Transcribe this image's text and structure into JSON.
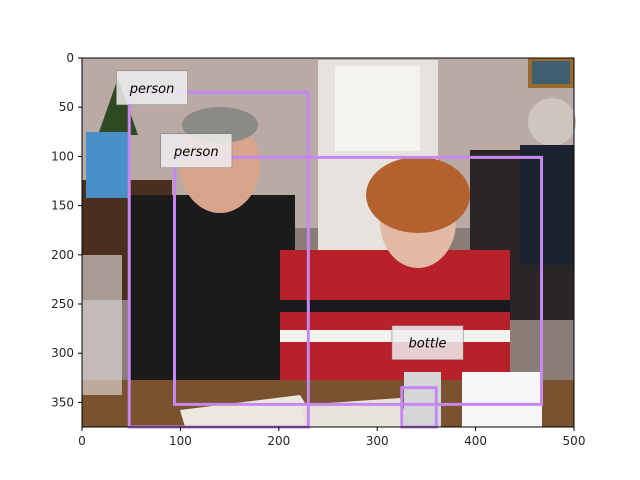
{
  "image": {
    "description_free": true,
    "width_units": 500,
    "height_units": 375,
    "x_ticks": [
      0,
      100,
      200,
      300,
      400,
      500
    ],
    "y_ticks": [
      0,
      50,
      100,
      150,
      200,
      250,
      300,
      350
    ],
    "box_color": "#c688f0",
    "label_bg": "#eeeeee"
  },
  "detections": [
    {
      "label": "person",
      "x1": 48,
      "y1": 35,
      "x2": 230,
      "y2": 375
    },
    {
      "label": "person",
      "x1": 94,
      "y1": 101,
      "x2": 467,
      "y2": 352
    },
    {
      "label": "bottle",
      "x1": 325,
      "y1": 335,
      "x2": 360,
      "y2": 375
    }
  ],
  "label_anchors": [
    {
      "x": 35,
      "y": 13
    },
    {
      "x": 80,
      "y": 77
    },
    {
      "x": 315,
      "y": 272
    }
  ]
}
